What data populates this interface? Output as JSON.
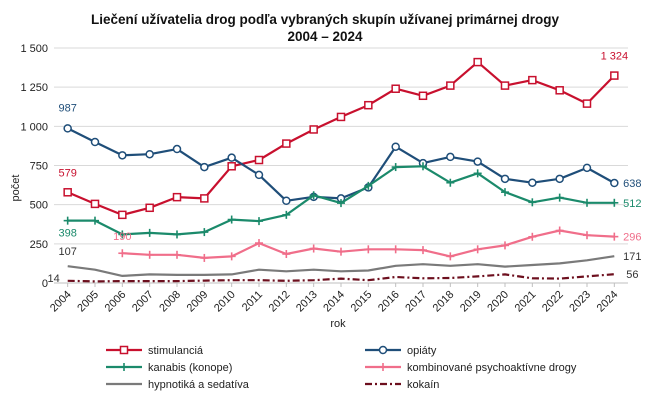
{
  "chart_data": {
    "type": "line",
    "title": "Liečení užívatelia drog podľa vybraných skupín užívanej primárnej drogy",
    "subtitle": "2004 – 2024",
    "xlabel": "rok",
    "ylabel": "počet",
    "ylim": [
      0,
      1500
    ],
    "yticks": [
      0,
      250,
      500,
      750,
      1000,
      1250,
      1500
    ],
    "ytick_labels": [
      "0",
      "250",
      "500",
      "750",
      "1 000",
      "1 250",
      "1 500"
    ],
    "grid": true,
    "legend_position": "bottom",
    "categories": [
      "2004",
      "2005",
      "2006",
      "2007",
      "2008",
      "2009",
      "2010",
      "2011",
      "2012",
      "2013",
      "2014",
      "2015",
      "2016",
      "2017",
      "2018",
      "2019",
      "2020",
      "2021",
      "2022",
      "2023",
      "2024"
    ],
    "series": [
      {
        "name": "stimulanciá",
        "color": "#c8102e",
        "style": "solid-square",
        "values": [
          579,
          505,
          435,
          480,
          548,
          540,
          745,
          785,
          890,
          980,
          1060,
          1135,
          1240,
          1195,
          1260,
          1410,
          1260,
          1295,
          1230,
          1145,
          1324
        ],
        "labels": [
          {
            "index": 0,
            "text": "579"
          },
          {
            "index": 20,
            "text": "1 324"
          }
        ]
      },
      {
        "name": "opiáty",
        "color": "#1f4e79",
        "style": "solid-circle",
        "values": [
          987,
          900,
          815,
          822,
          855,
          740,
          800,
          690,
          525,
          550,
          540,
          610,
          870,
          765,
          805,
          775,
          665,
          640,
          665,
          735,
          638
        ],
        "labels": [
          {
            "index": 0,
            "text": "987"
          },
          {
            "index": 20,
            "text": "638"
          }
        ]
      },
      {
        "name": "kanabis (konope)",
        "color": "#1b8a6b",
        "style": "solid-plus",
        "values": [
          398,
          398,
          310,
          320,
          310,
          325,
          405,
          395,
          435,
          560,
          510,
          620,
          740,
          745,
          640,
          700,
          580,
          515,
          545,
          512,
          512
        ],
        "labels": [
          {
            "index": 0,
            "text": "398"
          },
          {
            "index": 20,
            "text": "512"
          }
        ]
      },
      {
        "name": "kombinované psychoaktívne drogy",
        "color": "#f06e8a",
        "style": "solid-plus",
        "values": [
          null,
          null,
          190,
          180,
          180,
          160,
          170,
          255,
          185,
          220,
          200,
          215,
          215,
          210,
          170,
          215,
          240,
          295,
          335,
          305,
          296
        ],
        "labels": [
          {
            "index": 2,
            "text": "190"
          },
          {
            "index": 20,
            "text": "296"
          }
        ]
      },
      {
        "name": "hypnotiká a sedatíva",
        "color": "#7a7a7a",
        "style": "solid",
        "values": [
          107,
          85,
          45,
          55,
          52,
          52,
          55,
          85,
          75,
          85,
          75,
          80,
          110,
          120,
          110,
          120,
          105,
          115,
          125,
          145,
          171
        ],
        "labels": [
          {
            "index": 0,
            "text": "107"
          },
          {
            "index": 20,
            "text": "171"
          }
        ]
      },
      {
        "name": "kokaín",
        "color": "#6d0f1e",
        "style": "dashdot",
        "values": [
          14,
          10,
          12,
          12,
          12,
          15,
          18,
          18,
          14,
          18,
          28,
          18,
          38,
          30,
          32,
          42,
          55,
          30,
          28,
          42,
          56
        ],
        "labels": [
          {
            "index": 0,
            "text": "14"
          },
          {
            "index": 20,
            "text": "56"
          }
        ]
      }
    ]
  }
}
